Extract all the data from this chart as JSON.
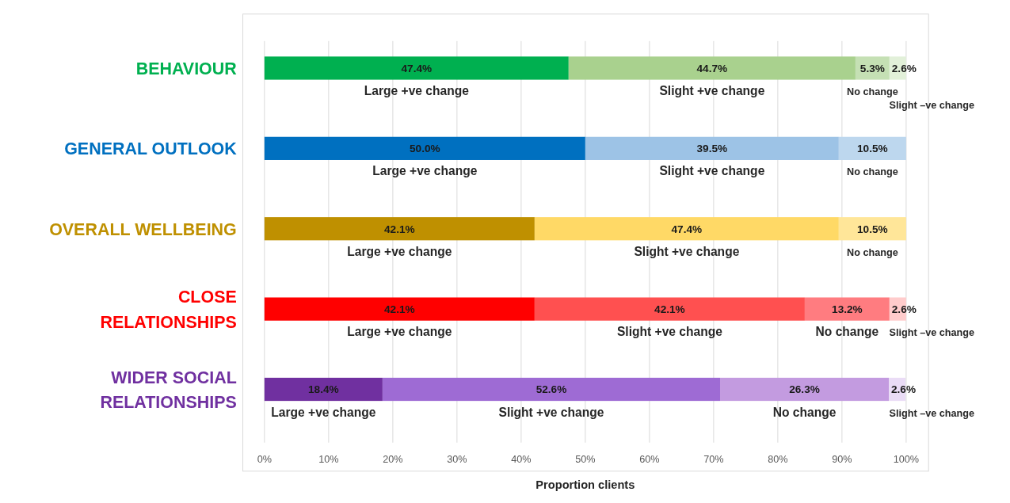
{
  "chart_data": {
    "type": "bar",
    "orientation": "horizontal",
    "stacked": true,
    "categories": [
      "BEHAVIOUR",
      "GENERAL OUTLOOK",
      "OVERALL WELLBEING",
      "CLOSE RELATIONSHIPS",
      "WIDER SOCIAL RELATIONSHIPS"
    ],
    "series": [
      {
        "name": "Large +ve change",
        "colors": [
          "#00b050",
          "#0070c0",
          "#bf9000",
          "#ff0000",
          "#7030a0"
        ],
        "values": [
          47.4,
          50.0,
          42.1,
          42.1,
          18.4
        ],
        "value_labels": [
          "47.4%",
          "50.0%",
          "42.1%",
          "42.1%",
          "18.4%"
        ]
      },
      {
        "name": "Slight +ve change",
        "colors": [
          "#a9d18e",
          "#9dc3e6",
          "#ffd966",
          "#ff5050",
          "#9e6bd4"
        ],
        "values": [
          44.7,
          39.5,
          47.4,
          42.1,
          52.6
        ],
        "value_labels": [
          "44.7%",
          "39.5%",
          "47.4%",
          "42.1%",
          "52.6%"
        ]
      },
      {
        "name": "No change",
        "colors": [
          "#c5e0b4",
          "#bdd7ee",
          "#ffe699",
          "#ff7c80",
          "#c39be0"
        ],
        "values": [
          5.3,
          10.5,
          10.5,
          13.2,
          26.3
        ],
        "value_labels": [
          "5.3%",
          "10.5%",
          "10.5%",
          "13.2%",
          "26.3%"
        ]
      },
      {
        "name": "Slight –ve change",
        "colors": [
          "#e2f0d9",
          null,
          null,
          "#ffcccc",
          "#eadcf6"
        ],
        "values": [
          2.6,
          null,
          null,
          2.6,
          2.6
        ],
        "value_labels": [
          "2.6%",
          null,
          null,
          "2.6%",
          "2.6%"
        ]
      }
    ],
    "xlabel": "Proportion clients",
    "xlim": [
      0,
      100
    ],
    "xticks": [
      {
        "value": 0,
        "label": "0%"
      },
      {
        "value": 10,
        "label": "10%"
      },
      {
        "value": 20,
        "label": "20%"
      },
      {
        "value": 30,
        "label": "30%"
      },
      {
        "value": 40,
        "label": "40%"
      },
      {
        "value": 50,
        "label": "50%"
      },
      {
        "value": 60,
        "label": "60%"
      },
      {
        "value": 70,
        "label": "70%"
      },
      {
        "value": 80,
        "label": "80%"
      },
      {
        "value": 90,
        "label": "90%"
      },
      {
        "value": 100,
        "label": "100%"
      }
    ],
    "grid": "x",
    "legend": false
  }
}
